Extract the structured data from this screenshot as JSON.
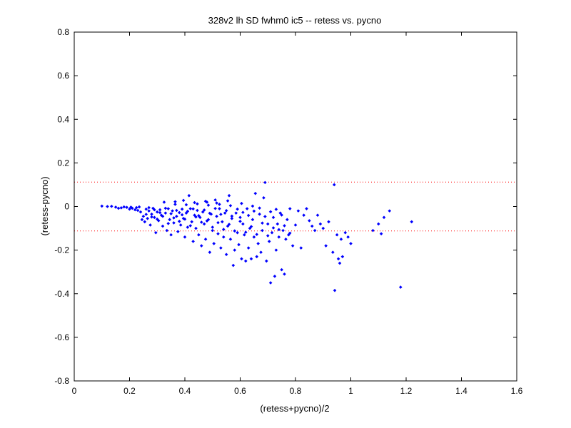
{
  "chart_data": {
    "type": "scatter",
    "title": "328v2 lh SD fwhm0 ic5 -- retess vs. pycno",
    "xlabel": "(retess+pycno)/2",
    "ylabel": "(retess-pycno)",
    "xlim": [
      0,
      1.6
    ],
    "ylim": [
      -0.8,
      0.8
    ],
    "xticks": [
      "0",
      "0.2",
      "0.4",
      "0.6",
      "0.8",
      "1",
      "1.2",
      "1.4",
      "1.6"
    ],
    "yticks": [
      "-0.8",
      "-0.6",
      "-0.4",
      "-0.2",
      "0",
      "0.2",
      "0.4",
      "0.6",
      "0.8"
    ],
    "grid": false,
    "colors": {
      "points": "#0000ff",
      "reference_lines": "#ff0000"
    },
    "reference_lines": [
      0.112,
      -0.112
    ],
    "series": [
      {
        "points": [
          [
            0.1,
            0.002
          ],
          [
            0.12,
            0.0
          ],
          [
            0.135,
            0.001
          ],
          [
            0.15,
            -0.003
          ],
          [
            0.16,
            -0.008
          ],
          [
            0.17,
            -0.006
          ],
          [
            0.18,
            -0.002
          ],
          [
            0.19,
            -0.004
          ],
          [
            0.2,
            -0.012
          ],
          [
            0.205,
            -0.003
          ],
          [
            0.21,
            -0.008
          ],
          [
            0.22,
            -0.015
          ],
          [
            0.225,
            -0.005
          ],
          [
            0.23,
            -0.018
          ],
          [
            0.235,
            -0.002
          ],
          [
            0.24,
            -0.025
          ],
          [
            0.245,
            -0.06
          ],
          [
            0.25,
            -0.045
          ],
          [
            0.255,
            -0.07
          ],
          [
            0.26,
            -0.012
          ],
          [
            0.265,
            -0.055
          ],
          [
            0.27,
            -0.02
          ],
          [
            0.275,
            -0.085
          ],
          [
            0.28,
            -0.035
          ],
          [
            0.285,
            -0.008
          ],
          [
            0.29,
            -0.05
          ],
          [
            0.295,
            -0.12
          ],
          [
            0.3,
            -0.025
          ],
          [
            0.305,
            -0.065
          ],
          [
            0.31,
            -0.015
          ],
          [
            0.315,
            -0.04
          ],
          [
            0.32,
            -0.09
          ],
          [
            0.325,
            0.02
          ],
          [
            0.33,
            -0.03
          ],
          [
            0.335,
            -0.11
          ],
          [
            0.34,
            -0.01
          ],
          [
            0.345,
            -0.06
          ],
          [
            0.35,
            -0.13
          ],
          [
            0.355,
            -0.02
          ],
          [
            0.36,
            -0.075
          ],
          [
            0.365,
            0.01
          ],
          [
            0.37,
            -0.045
          ],
          [
            0.375,
            -0.115
          ],
          [
            0.38,
            -0.028
          ],
          [
            0.385,
            -0.085
          ],
          [
            0.39,
            -0.012
          ],
          [
            0.395,
            -0.055
          ],
          [
            0.4,
            -0.14
          ],
          [
            0.405,
            -0.03
          ],
          [
            0.41,
            -0.095
          ],
          [
            0.415,
            0.05
          ],
          [
            0.42,
            -0.01
          ],
          [
            0.425,
            -0.07
          ],
          [
            0.43,
            -0.16
          ],
          [
            0.435,
            -0.04
          ],
          [
            0.44,
            -0.1
          ],
          [
            0.445,
            -0.018
          ],
          [
            0.45,
            -0.13
          ],
          [
            0.455,
            -0.05
          ],
          [
            0.46,
            -0.18
          ],
          [
            0.465,
            -0.025
          ],
          [
            0.47,
            -0.08
          ],
          [
            0.475,
            -0.15
          ],
          [
            0.48,
            0.02
          ],
          [
            0.485,
            -0.06
          ],
          [
            0.49,
            -0.21
          ],
          [
            0.495,
            -0.035
          ],
          [
            0.5,
            -0.11
          ],
          [
            0.505,
            -0.17
          ],
          [
            0.51,
            0.03
          ],
          [
            0.515,
            -0.045
          ],
          [
            0.52,
            -0.125
          ],
          [
            0.525,
            -0.01
          ],
          [
            0.53,
            -0.19
          ],
          [
            0.535,
            -0.07
          ],
          [
            0.54,
            -0.14
          ],
          [
            0.545,
            -0.03
          ],
          [
            0.55,
            -0.22
          ],
          [
            0.555,
            -0.09
          ],
          [
            0.56,
            0.05
          ],
          [
            0.565,
            -0.15
          ],
          [
            0.57,
            -0.055
          ],
          [
            0.575,
            -0.27
          ],
          [
            0.58,
            -0.2
          ],
          [
            0.585,
            -0.03
          ],
          [
            0.59,
            -0.12
          ],
          [
            0.595,
            -0.175
          ],
          [
            0.6,
            -0.05
          ],
          [
            0.605,
            -0.24
          ],
          [
            0.61,
            -0.08
          ],
          [
            0.615,
            -0.13
          ],
          [
            0.62,
            -0.25
          ],
          [
            0.625,
            -0.01
          ],
          [
            0.63,
            -0.19
          ],
          [
            0.635,
            -0.1
          ],
          [
            0.64,
            -0.24
          ],
          [
            0.645,
            -0.06
          ],
          [
            0.65,
            -0.14
          ],
          [
            0.655,
            0.06
          ],
          [
            0.66,
            -0.23
          ],
          [
            0.665,
            -0.17
          ],
          [
            0.67,
            -0.035
          ],
          [
            0.675,
            -0.21
          ],
          [
            0.68,
            -0.11
          ],
          [
            0.685,
            0.04
          ],
          [
            0.69,
            0.11
          ],
          [
            0.695,
            -0.25
          ],
          [
            0.7,
            -0.08
          ],
          [
            0.705,
            -0.16
          ],
          [
            0.71,
            -0.35
          ],
          [
            0.715,
            -0.12
          ],
          [
            0.72,
            -0.05
          ],
          [
            0.725,
            -0.32
          ],
          [
            0.73,
            -0.2
          ],
          [
            0.735,
            -0.08
          ],
          [
            0.74,
            -0.14
          ],
          [
            0.745,
            -0.03
          ],
          [
            0.75,
            -0.29
          ],
          [
            0.755,
            -0.11
          ],
          [
            0.76,
            -0.31
          ],
          [
            0.765,
            -0.15
          ],
          [
            0.77,
            -0.06
          ],
          [
            0.775,
            -0.13
          ],
          [
            0.78,
            -0.01
          ],
          [
            0.79,
            -0.18
          ],
          [
            0.8,
            -0.085
          ],
          [
            0.81,
            -0.02
          ],
          [
            0.82,
            -0.19
          ],
          [
            0.83,
            -0.04
          ],
          [
            0.84,
            -0.01
          ],
          [
            0.85,
            -0.065
          ],
          [
            0.86,
            -0.09
          ],
          [
            0.87,
            -0.11
          ],
          [
            0.88,
            -0.04
          ],
          [
            0.89,
            -0.08
          ],
          [
            0.9,
            -0.1
          ],
          [
            0.91,
            -0.18
          ],
          [
            0.92,
            -0.07
          ],
          [
            0.935,
            -0.21
          ],
          [
            0.94,
            0.1
          ],
          [
            0.942,
            -0.385
          ],
          [
            0.95,
            -0.13
          ],
          [
            0.955,
            -0.24
          ],
          [
            0.96,
            -0.26
          ],
          [
            0.965,
            -0.15
          ],
          [
            0.97,
            -0.23
          ],
          [
            0.98,
            -0.12
          ],
          [
            0.99,
            -0.14
          ],
          [
            1.0,
            -0.17
          ],
          [
            1.08,
            -0.11
          ],
          [
            1.1,
            -0.08
          ],
          [
            1.11,
            -0.125
          ],
          [
            1.12,
            -0.05
          ],
          [
            1.14,
            -0.02
          ],
          [
            1.18,
            -0.37
          ],
          [
            1.22,
            -0.07
          ],
          [
            0.27,
            -0.005
          ],
          [
            0.29,
            -0.015
          ],
          [
            0.31,
            -0.028
          ],
          [
            0.33,
            -0.008
          ],
          [
            0.35,
            -0.033
          ],
          [
            0.37,
            -0.018
          ],
          [
            0.39,
            -0.038
          ],
          [
            0.41,
            -0.022
          ],
          [
            0.43,
            -0.011
          ],
          [
            0.45,
            -0.042
          ],
          [
            0.47,
            -0.016
          ],
          [
            0.49,
            -0.031
          ],
          [
            0.51,
            -0.009
          ],
          [
            0.53,
            -0.036
          ],
          [
            0.55,
            -0.019
          ],
          [
            0.57,
            -0.044
          ],
          [
            0.59,
            -0.012
          ],
          [
            0.61,
            -0.027
          ],
          [
            0.63,
            -0.041
          ],
          [
            0.65,
            -0.021
          ],
          [
            0.67,
            -0.007
          ],
          [
            0.69,
            -0.046
          ],
          [
            0.71,
            -0.024
          ],
          [
            0.73,
            -0.013
          ],
          [
            0.75,
            -0.039
          ],
          [
            0.32,
            -0.045
          ],
          [
            0.36,
            -0.052
          ],
          [
            0.4,
            -0.058
          ],
          [
            0.44,
            -0.048
          ],
          [
            0.48,
            -0.066
          ],
          [
            0.52,
            -0.074
          ],
          [
            0.56,
            -0.082
          ],
          [
            0.6,
            -0.068
          ],
          [
            0.64,
            -0.092
          ],
          [
            0.68,
            -0.076
          ],
          [
            0.72,
            -0.098
          ],
          [
            0.76,
            -0.088
          ],
          [
            0.46,
            -0.072
          ],
          [
            0.5,
            -0.095
          ],
          [
            0.54,
            -0.105
          ],
          [
            0.58,
            -0.112
          ],
          [
            0.62,
            -0.118
          ],
          [
            0.66,
            -0.128
          ],
          [
            0.7,
            -0.134
          ],
          [
            0.74,
            -0.106
          ],
          [
            0.78,
            -0.122
          ],
          [
            0.42,
            -0.088
          ],
          [
            0.38,
            -0.068
          ],
          [
            0.34,
            -0.078
          ],
          [
            0.3,
            -0.058
          ],
          [
            0.26,
            -0.036
          ],
          [
            0.28,
            -0.048
          ],
          [
            0.405,
            0.008
          ],
          [
            0.445,
            0.012
          ],
          [
            0.485,
            0.006
          ],
          [
            0.525,
            0.01
          ],
          [
            0.565,
            0.004
          ],
          [
            0.605,
            0.014
          ],
          [
            0.645,
            0.002
          ],
          [
            0.365,
            0.022
          ],
          [
            0.395,
            0.028
          ],
          [
            0.435,
            0.018
          ],
          [
            0.475,
            0.024
          ],
          [
            0.515,
            0.016
          ],
          [
            0.555,
            0.026
          ]
        ]
      }
    ]
  }
}
